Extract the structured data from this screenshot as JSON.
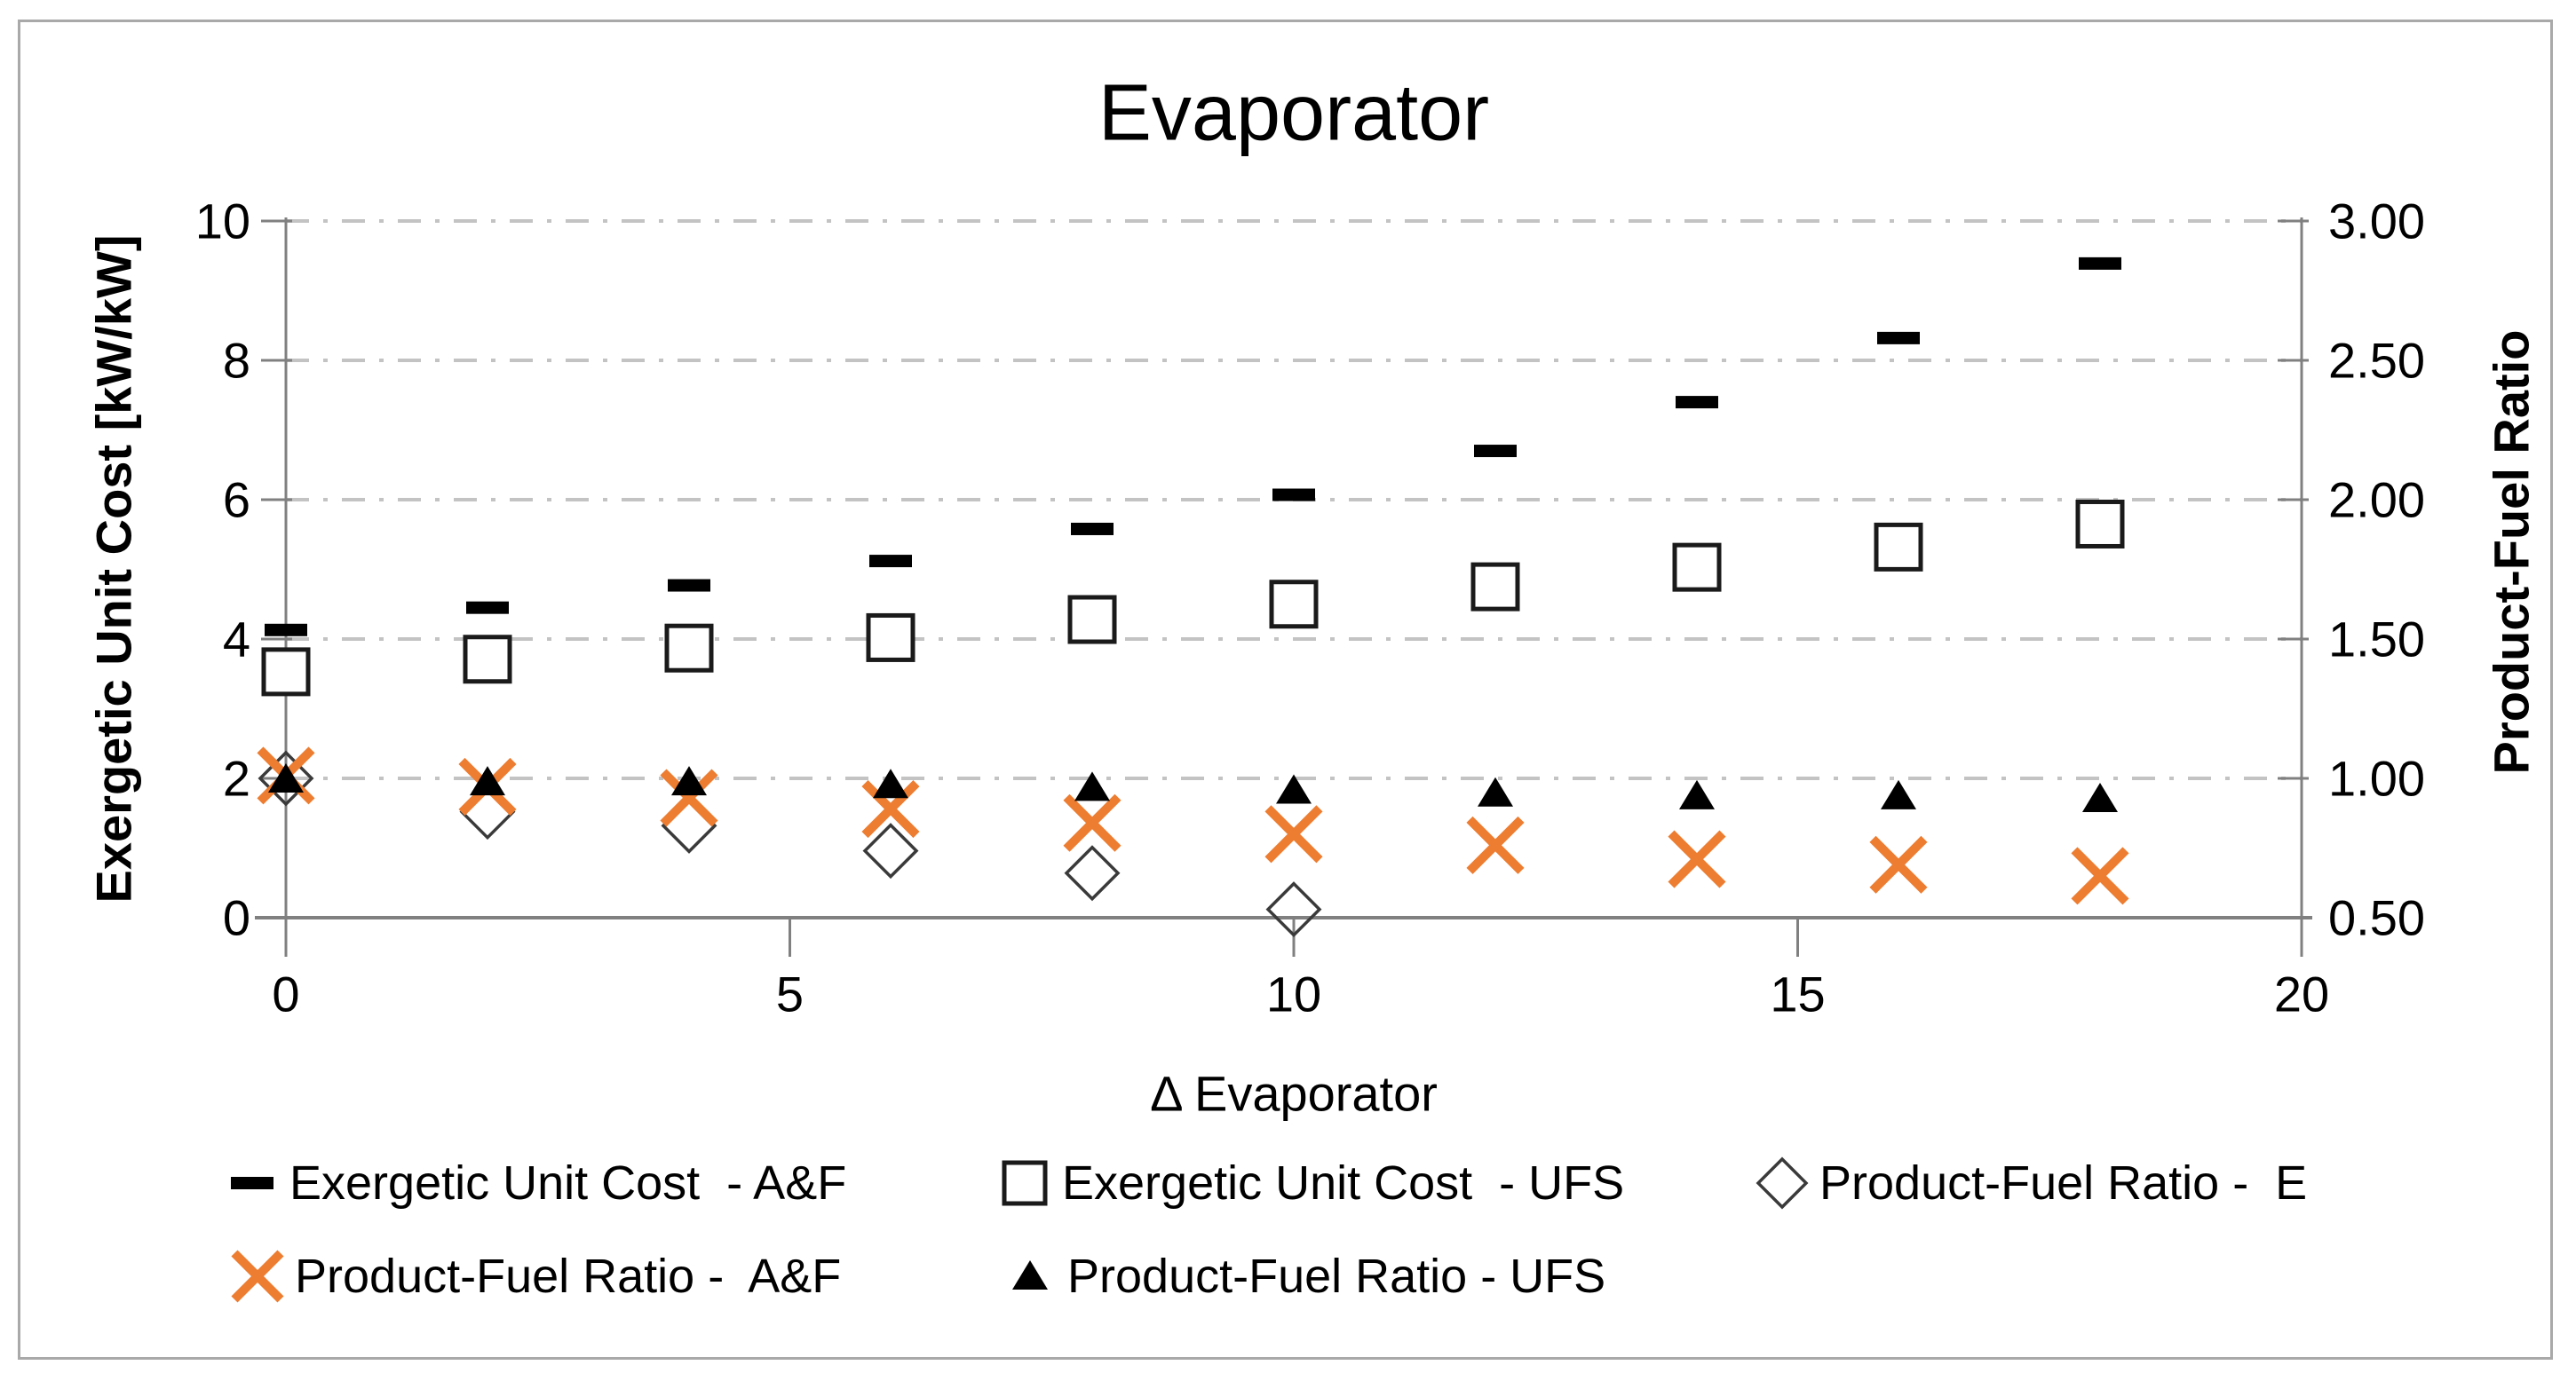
{
  "colors": {
    "orange": "#ED7D31",
    "black": "#000000",
    "diamond_stroke": "#3A3A3A",
    "grid": "#C3C3C3",
    "axis": "#808080",
    "frame": "#A9A9A9",
    "background": "#FFFFFF"
  },
  "chart_data": {
    "type": "scatter",
    "title": "Evaporator",
    "x_axis": {
      "label": "Δ Evaporator",
      "ticks": [
        0,
        5,
        10,
        15,
        20
      ],
      "range": [
        0,
        20
      ]
    },
    "left_axis": {
      "label": "Exergetic Unit Cost [kW/kW]",
      "ticks": [
        10,
        8,
        6,
        4,
        2,
        0
      ],
      "range": [
        0,
        10
      ]
    },
    "right_axis": {
      "label": "Product-Fuel Ratio",
      "ticks": [
        "3.00",
        "2.50",
        "2.00",
        "1.50",
        "1.00",
        "0.50"
      ],
      "range": [
        0.5,
        3.0
      ]
    },
    "grid": "horizontal dash-dot lines at left-axis ticks",
    "legend_position": "bottom",
    "series": [
      {
        "name": "Exergetic Unit Cost - A&F",
        "legend_label": "Exergetic Unit Cost  - A&F",
        "marker": "dash",
        "axis": "left",
        "x": [
          0,
          2,
          4,
          6,
          8,
          10,
          12,
          14,
          16,
          18
        ],
        "y": [
          4.13,
          4.45,
          4.77,
          5.12,
          5.58,
          6.07,
          6.7,
          7.4,
          8.32,
          9.39
        ]
      },
      {
        "name": "Exergetic Unit Cost - UFS",
        "legend_label": "Exergetic Unit Cost  - UFS",
        "marker": "square",
        "axis": "left",
        "x": [
          0,
          2,
          4,
          6,
          8,
          10,
          12,
          14,
          16,
          18
        ],
        "y": [
          3.53,
          3.71,
          3.87,
          4.02,
          4.28,
          4.5,
          4.75,
          5.03,
          5.32,
          5.65
        ]
      },
      {
        "name": "Product-Fuel Ratio - E",
        "legend_label": "Product-Fuel Ratio -  E",
        "marker": "diamond",
        "axis": "right",
        "x": [
          0,
          2,
          4,
          6,
          8,
          10
        ],
        "y": [
          1.0,
          0.88,
          0.83,
          0.74,
          0.66,
          0.53
        ]
      },
      {
        "name": "Product-Fuel Ratio - A&F",
        "legend_label": "Product-Fuel Ratio -  A&F",
        "marker": "x",
        "axis": "right",
        "x": [
          0,
          2,
          4,
          6,
          8,
          10,
          12,
          14,
          16,
          18
        ],
        "y": [
          1.01,
          0.97,
          0.93,
          0.89,
          0.84,
          0.8,
          0.76,
          0.71,
          0.69,
          0.65
        ]
      },
      {
        "name": "Product-Fuel Ratio - UFS",
        "legend_label": "Product-Fuel Ratio - UFS",
        "marker": "triangle",
        "axis": "right",
        "x": [
          0,
          2,
          4,
          6,
          8,
          10,
          12,
          14,
          16,
          18
        ],
        "y": [
          1.0,
          0.99,
          0.99,
          0.98,
          0.97,
          0.96,
          0.95,
          0.94,
          0.94,
          0.93
        ]
      }
    ]
  }
}
